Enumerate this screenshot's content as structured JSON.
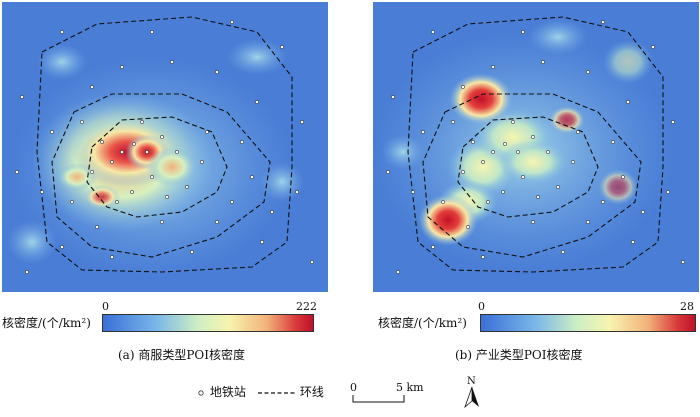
{
  "panels": [
    {
      "legend_label": "核密度/(个/km²)",
      "min": "0",
      "max": "222",
      "caption": "(a) 商服类型POI核密度"
    },
    {
      "legend_label": "核密度/(个/km²)",
      "min": "0",
      "max": "28",
      "caption": "(b) 产业类型POI核密度"
    }
  ],
  "legend": {
    "station_label": "地铁站",
    "ring_label": "环线",
    "scale_zero": "0",
    "scale_value": "5 km",
    "north": "N"
  },
  "colors": {
    "background": "#4a7ed6",
    "low": "#3a6fd8",
    "mid": "#cdeec4",
    "high": "#c0102a"
  }
}
